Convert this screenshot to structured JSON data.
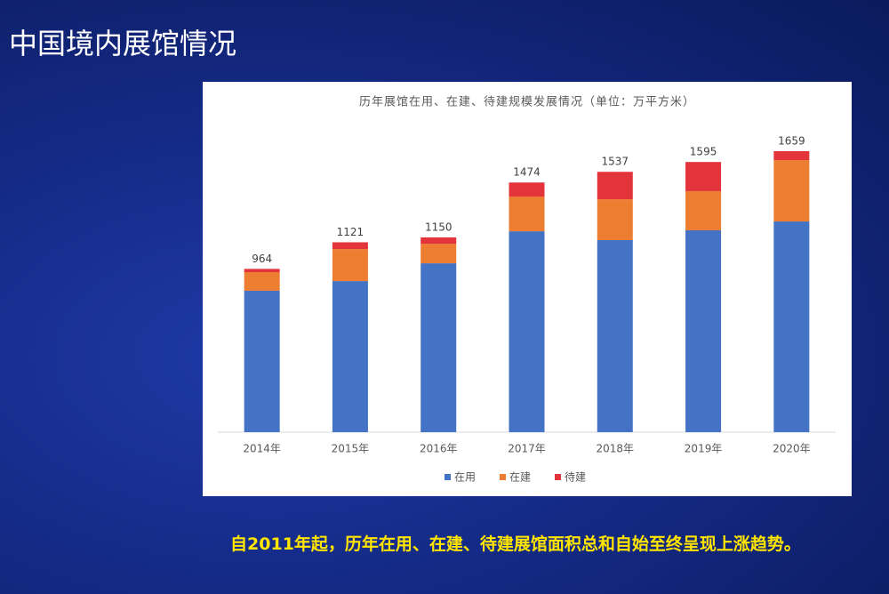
{
  "slide_title": "中国境内展馆情况",
  "caption": "自2011年起，历年在用、在建、待建展馆面积总和自始至终呈现上涨趋势。",
  "chart_data": {
    "type": "stacked_bar",
    "title": "历年展馆在用、在建、待建规模发展情况（单位：万平方米）",
    "categories": [
      "2014年",
      "2015年",
      "2016年",
      "2017年",
      "2018年",
      "2019年",
      "2020年"
    ],
    "series": [
      {
        "name": "在用",
        "color": "#4472c4",
        "values": [
          835,
          892,
          997,
          1186,
          1134,
          1192,
          1244
        ]
      },
      {
        "name": "在建",
        "color": "#ed7d31",
        "values": [
          110,
          189,
          115,
          205,
          241,
          231,
          362
        ]
      },
      {
        "name": "待建",
        "color": "#e3343c",
        "values": [
          19,
          40,
          38,
          83,
          162,
          172,
          53
        ]
      }
    ],
    "totals": [
      964,
      1121,
      1150,
      1474,
      1537,
      1595,
      1659
    ],
    "legend": "bottom"
  }
}
